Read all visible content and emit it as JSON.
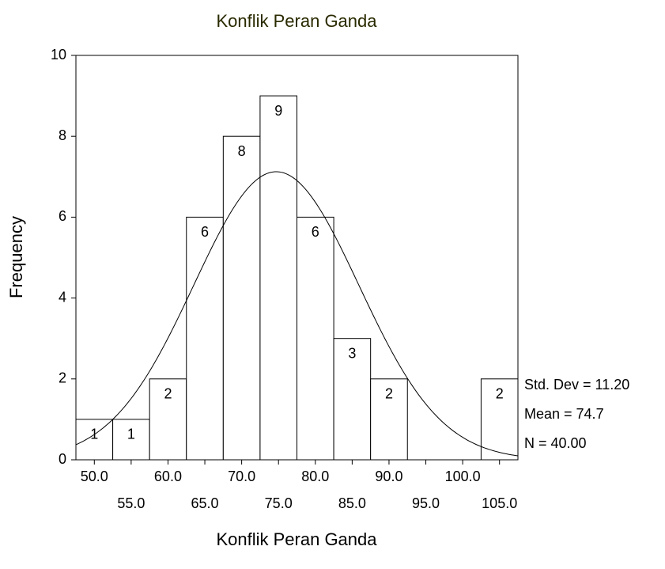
{
  "chart_data": {
    "type": "histogram",
    "title": "Konflik Peran Ganda",
    "x_label": "Konflik Peran Ganda",
    "y_label": "Frequency",
    "bins": [
      47.5,
      52.5,
      57.5,
      62.5,
      67.5,
      72.5,
      77.5,
      82.5,
      87.5,
      92.5,
      97.5,
      102.5,
      107.5
    ],
    "values": [
      1,
      1,
      2,
      6,
      8,
      9,
      6,
      3,
      2,
      0,
      0,
      2
    ],
    "color": "#ffffff",
    "xlim": [
      47.5,
      107.5
    ],
    "xticks": [
      {
        "value": 50,
        "label": "50.0"
      },
      {
        "value": 55,
        "label": "55.0"
      },
      {
        "value": 60,
        "label": "60.0"
      },
      {
        "value": 65,
        "label": "65.0"
      },
      {
        "value": 70,
        "label": "70.0"
      },
      {
        "value": 75,
        "label": "75.0"
      },
      {
        "value": 80,
        "label": "80.0"
      },
      {
        "value": 85,
        "label": "85.0"
      },
      {
        "value": 90,
        "label": "90.0"
      },
      {
        "value": 95,
        "label": "95.0"
      },
      {
        "value": 100,
        "label": "100.0"
      },
      {
        "value": 105,
        "label": "105.0"
      }
    ],
    "ylim": [
      0,
      10
    ],
    "yticks": [
      0,
      2,
      4,
      6,
      8,
      10
    ],
    "stats": [
      {
        "value": 11.2,
        "label": "Std. Dev = 11.20"
      },
      {
        "value": 74.7,
        "label": "Mean = 74.7"
      },
      {
        "value": 40,
        "label": "N = 40.00"
      }
    ]
  }
}
